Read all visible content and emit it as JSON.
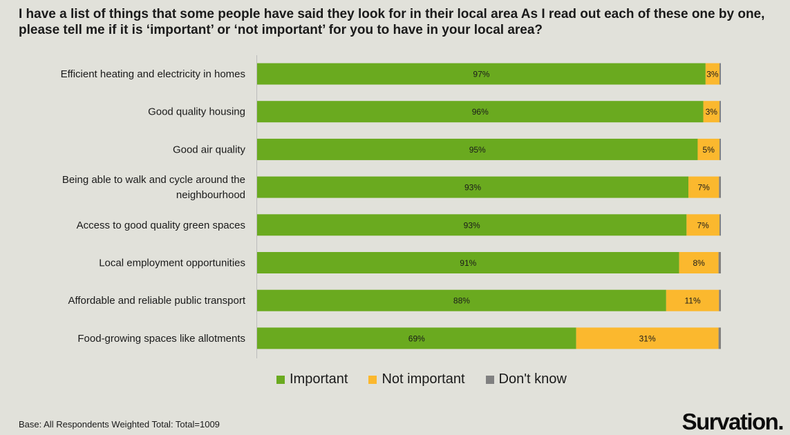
{
  "title": "I have a list of things that some people have said they look for in their local area As I read out each of these one by one, please tell me if it is ‘important’ or ‘not important’ for you to have in your local area?",
  "footnote": "Base: All Respondents Weighted Total: Total=1009",
  "brand": "Survation.",
  "colors": {
    "important": "#6aaa1f",
    "not_important": "#fbb82e",
    "dont_know": "#808080",
    "axis": "#bcbcbc"
  },
  "chart_data": {
    "type": "bar",
    "orientation": "horizontal",
    "stacked": true,
    "categories": [
      "Efficient heating and electricity in homes",
      "Good quality housing",
      "Good air quality",
      "Being able to walk and cycle around the neighbourhood",
      "Access to good quality green spaces",
      "Local employment opportunities",
      "Affordable and reliable public transport",
      "Food-growing spaces like allotments"
    ],
    "series": [
      {
        "name": "Important",
        "values": [
          96.7,
          96.2,
          95.0,
          93.0,
          92.6,
          91.0,
          88.2,
          68.8
        ],
        "labels": [
          "97%",
          "96%",
          "95%",
          "93%",
          "93%",
          "91%",
          "88%",
          "69%"
        ]
      },
      {
        "name": "Not important",
        "values": [
          3.0,
          3.5,
          4.7,
          6.6,
          7.1,
          8.5,
          11.4,
          30.7
        ],
        "labels": [
          "3%",
          "3%",
          "5%",
          "7%",
          "7%",
          "8%",
          "11%",
          "31%"
        ]
      },
      {
        "name": "Don't know",
        "values": [
          0.3,
          0.3,
          0.3,
          0.4,
          0.3,
          0.5,
          0.4,
          0.5
        ],
        "labels": [
          "",
          "",
          "",
          "",
          "",
          "",
          "",
          ""
        ]
      }
    ],
    "xlim": [
      0,
      100
    ],
    "legend_position": "bottom",
    "grid": false
  }
}
